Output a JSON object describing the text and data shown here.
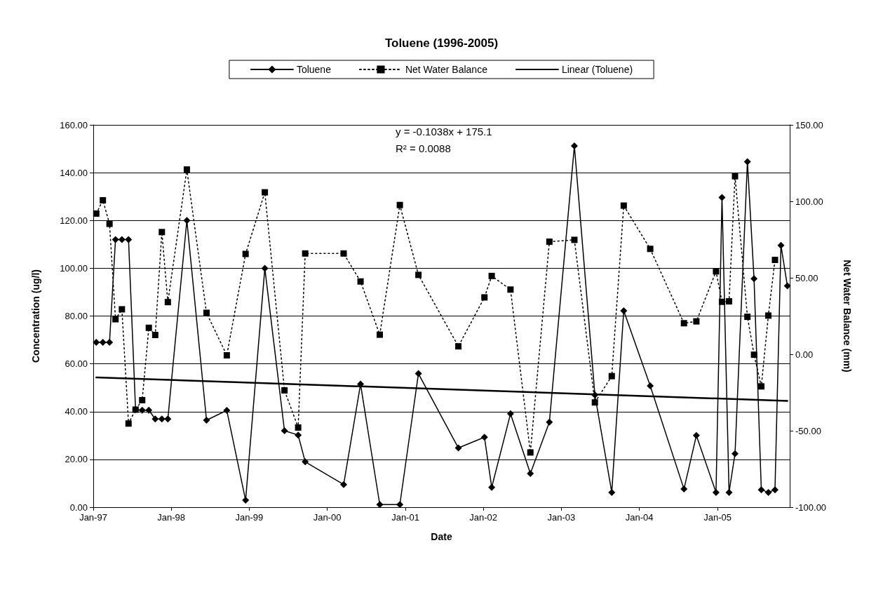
{
  "chart_data": {
    "type": "line",
    "title": "Toluene (1996-2005)",
    "xlabel": "Date",
    "ylabel": "Concentration (ug/l)",
    "y2label": "Net Water Balance (mm)",
    "x": [
      "1997-01-15",
      "1997-02-15",
      "1997-03-18",
      "1997-04-15",
      "1997-05-15",
      "1997-06-15",
      "1997-07-18",
      "1997-08-18",
      "1997-09-18",
      "1997-10-18",
      "1997-11-18",
      "1997-12-16",
      "1998-03-15",
      "1998-06-15",
      "1998-09-18",
      "1998-12-15",
      "1999-03-15",
      "1999-06-15",
      "1999-08-18",
      "1999-09-20",
      "2000-03-18",
      "2000-06-05",
      "2000-09-03",
      "2000-12-06",
      "2001-03-03",
      "2001-09-06",
      "2002-01-06",
      "2002-02-09",
      "2002-05-08",
      "2002-08-09",
      "2002-11-06",
      "2003-03-03",
      "2003-06-07",
      "2003-08-25",
      "2003-10-20",
      "2004-02-21",
      "2004-07-28",
      "2004-09-24",
      "2004-12-25",
      "2005-01-22",
      "2005-02-24",
      "2005-03-24",
      "2005-05-21",
      "2005-06-21",
      "2005-07-25",
      "2005-08-27",
      "2005-09-27",
      "2005-10-25",
      "2005-11-24"
    ],
    "series": [
      {
        "name": "Toluene",
        "color": "#000000",
        "marker": "diamond",
        "line_style": "solid",
        "values": [
          69,
          69,
          69,
          112,
          112,
          112,
          40.8,
          40.6,
          40.6,
          36.9,
          36.9,
          36.9,
          120,
          36.4,
          40.5,
          2.9,
          100,
          32,
          30.2,
          19,
          9.5,
          51.5,
          1.1,
          1.1,
          55.9,
          24.8,
          29.3,
          8.3,
          39.1,
          14.1,
          35.6,
          151.2,
          47,
          6.2,
          82.2,
          50.8,
          7.6,
          30,
          6.2,
          129.6,
          6.2,
          22.4,
          144.6,
          95.6,
          7.3,
          6.2,
          7.3,
          109.6,
          92.6
        ]
      },
      {
        "name": "Net Water Balance",
        "color": "#000000",
        "marker": "square",
        "line_style": "dotted",
        "axis": "y2",
        "values": [
          92,
          100.7,
          85.3,
          22.9,
          29.4,
          -45.3,
          -36.2,
          -30,
          17.3,
          12.6,
          79.9,
          34.1,
          120.8,
          27.1,
          -0.7,
          65.6,
          105.9,
          -23.6,
          -47.9,
          65.9,
          65.9,
          47.6,
          12.8,
          97.6,
          51.9,
          5.2,
          37.2,
          51.2,
          42.3,
          -64.2,
          73.6,
          74.8,
          -31.5,
          -14.3,
          97.2,
          68.9,
          20.3,
          21.5,
          54.2,
          34.3,
          34.6,
          116.4,
          24.5,
          -0.3,
          -21,
          25.3,
          61.7,
          null,
          null
        ]
      },
      {
        "name": "Linear (Toluene)",
        "color": "#000000",
        "marker": "none",
        "line_style": "solid",
        "x": [
          "1997-01-15",
          "2005-11-24"
        ],
        "values": [
          54.3,
          44.5
        ]
      }
    ],
    "xlim": [
      "1997-01-01",
      "2005-12-05"
    ],
    "xticks": [
      {
        "value": "1997-01-01",
        "label": "Jan-97"
      },
      {
        "value": "1998-01-01",
        "label": "Jan-98"
      },
      {
        "value": "1999-01-01",
        "label": "Jan-99"
      },
      {
        "value": "2000-01-01",
        "label": "Jan-00"
      },
      {
        "value": "2001-01-01",
        "label": "Jan-01"
      },
      {
        "value": "2002-01-01",
        "label": "Jan-02"
      },
      {
        "value": "2003-01-01",
        "label": "Jan-03"
      },
      {
        "value": "2004-01-01",
        "label": "Jan-04"
      },
      {
        "value": "2005-01-01",
        "label": "Jan-05"
      }
    ],
    "ylim": [
      0,
      160
    ],
    "yticks": [
      {
        "value": 0,
        "label": "0.00"
      },
      {
        "value": 20,
        "label": "20.00"
      },
      {
        "value": 40,
        "label": "40.00"
      },
      {
        "value": 60,
        "label": "60.00"
      },
      {
        "value": 80,
        "label": "80.00"
      },
      {
        "value": 100,
        "label": "100.00"
      },
      {
        "value": 120,
        "label": "120.00"
      },
      {
        "value": 140,
        "label": "140.00"
      },
      {
        "value": 160,
        "label": "160.00"
      }
    ],
    "y2lim": [
      -100,
      150
    ],
    "y2ticks": [
      {
        "value": -100,
        "label": "-100.00"
      },
      {
        "value": -50,
        "label": "-50.00"
      },
      {
        "value": 0,
        "label": "0.00"
      },
      {
        "value": 50,
        "label": "50.00"
      },
      {
        "value": 100,
        "label": "100.00"
      },
      {
        "value": 150,
        "label": "150.00"
      }
    ],
    "grid": "y",
    "legend": "top",
    "annotations": [
      "y = -0.1038x + 175.1",
      "R² = 0.0088"
    ]
  }
}
